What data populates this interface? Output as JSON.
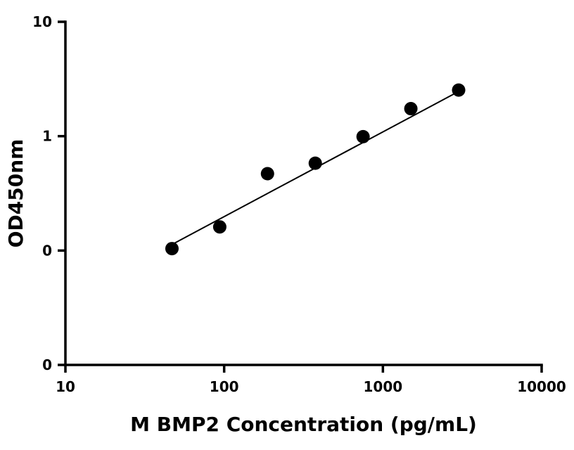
{
  "chart_data": {
    "type": "scatter",
    "xscale": "log",
    "yscale": "log",
    "xlabel": "M BMP2 Concentration (pg/mL)",
    "ylabel": "OD450nm",
    "xlim": [
      10,
      10000
    ],
    "ylim": [
      0.01,
      10
    ],
    "x_ticks": [
      {
        "value": 10,
        "label": "10"
      },
      {
        "value": 100,
        "label": "100"
      },
      {
        "value": 1000,
        "label": "1000"
      },
      {
        "value": 10000,
        "label": "10000"
      }
    ],
    "y_ticks": [
      {
        "value": 0.01,
        "label": "0"
      },
      {
        "value": 0.1,
        "label": "0"
      },
      {
        "value": 1,
        "label": "1"
      },
      {
        "value": 10,
        "label": "10"
      }
    ],
    "series": [
      {
        "x": [
          46.9,
          93.8,
          187.5,
          375,
          750,
          1500,
          3000
        ],
        "y": [
          0.104,
          0.161,
          0.47,
          0.58,
          0.99,
          1.74,
          2.53
        ]
      }
    ],
    "fit_line": {
      "x": [
        46.9,
        3000
      ],
      "y": [
        0.113,
        2.46
      ]
    },
    "grid": false,
    "legend": "none",
    "colors": {
      "marker": "#000000",
      "line": "#000000",
      "axis": "#000000"
    }
  }
}
